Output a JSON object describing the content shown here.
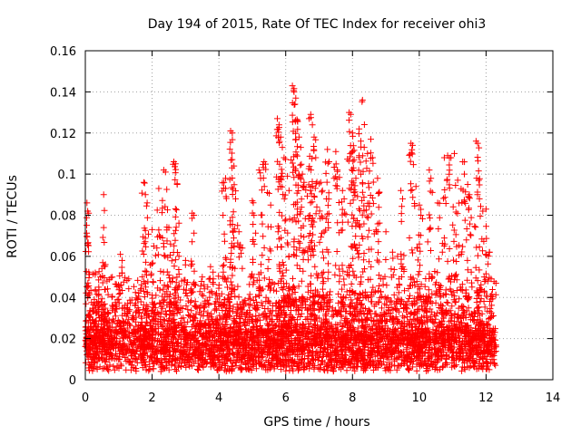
{
  "chart_data": {
    "type": "scatter",
    "title": "Day 194 of 2015, Rate Of TEC Index for receiver ohi3",
    "xlabel": "GPS time / hours",
    "ylabel": "ROTI / TECUs",
    "xlim": [
      0,
      14
    ],
    "ylim": [
      0,
      0.16
    ],
    "xticks": [
      "0",
      "2",
      "4",
      "6",
      "8",
      "10",
      "12",
      "14"
    ],
    "yticks": [
      "0",
      "0.02",
      "0.04",
      "0.06",
      "0.08",
      "0.1",
      "0.12",
      "0.14",
      "0.16"
    ],
    "grid": true,
    "marker": "plus",
    "color": "#ff0000",
    "x_data_range": [
      0.0,
      12.3
    ],
    "series": [
      {
        "name": "",
        "points": [
          [
            0.05,
            0.086
          ],
          [
            0.07,
            0.082
          ],
          [
            0.1,
            0.081
          ],
          [
            0.3,
            0.052
          ],
          [
            0.45,
            0.05
          ],
          [
            0.55,
            0.09
          ],
          [
            0.55,
            0.074
          ],
          [
            0.6,
            0.056
          ],
          [
            0.65,
            0.048
          ],
          [
            1.05,
            0.061
          ],
          [
            1.1,
            0.058
          ],
          [
            1.3,
            0.049
          ],
          [
            1.75,
            0.096
          ],
          [
            1.8,
            0.09
          ],
          [
            1.85,
            0.086
          ],
          [
            2.0,
            0.073
          ],
          [
            2.05,
            0.065
          ],
          [
            2.2,
            0.093
          ],
          [
            2.35,
            0.102
          ],
          [
            2.4,
            0.101
          ],
          [
            2.65,
            0.106
          ],
          [
            2.7,
            0.105
          ],
          [
            2.75,
            0.095
          ],
          [
            2.5,
            0.074
          ],
          [
            2.55,
            0.066
          ],
          [
            3.2,
            0.081
          ],
          [
            3.25,
            0.08
          ],
          [
            3.0,
            0.058
          ],
          [
            3.5,
            0.05
          ],
          [
            3.75,
            0.055
          ],
          [
            4.15,
            0.096
          ],
          [
            4.2,
            0.098
          ],
          [
            4.35,
            0.121
          ],
          [
            4.4,
            0.12
          ],
          [
            4.45,
            0.104
          ],
          [
            4.5,
            0.088
          ],
          [
            4.6,
            0.072
          ],
          [
            4.7,
            0.064
          ],
          [
            5.0,
            0.087
          ],
          [
            5.05,
            0.08
          ],
          [
            5.2,
            0.102
          ],
          [
            5.25,
            0.098
          ],
          [
            5.35,
            0.106
          ],
          [
            5.45,
            0.091
          ],
          [
            5.55,
            0.085
          ],
          [
            5.75,
            0.127
          ],
          [
            5.8,
            0.124
          ],
          [
            5.85,
            0.118
          ],
          [
            5.9,
            0.113
          ],
          [
            5.95,
            0.108
          ],
          [
            6.05,
            0.099
          ],
          [
            6.1,
            0.092
          ],
          [
            6.2,
            0.143
          ],
          [
            6.25,
            0.14
          ],
          [
            6.3,
            0.137
          ],
          [
            6.35,
            0.126
          ],
          [
            6.4,
            0.118
          ],
          [
            6.45,
            0.113
          ],
          [
            6.5,
            0.1
          ],
          [
            6.55,
            0.096
          ],
          [
            6.7,
            0.127
          ],
          [
            6.75,
            0.129
          ],
          [
            6.8,
            0.124
          ],
          [
            6.85,
            0.118
          ],
          [
            6.9,
            0.108
          ],
          [
            7.05,
            0.096
          ],
          [
            7.1,
            0.092
          ],
          [
            7.25,
            0.112
          ],
          [
            7.3,
            0.106
          ],
          [
            7.5,
            0.111
          ],
          [
            7.55,
            0.102
          ],
          [
            7.7,
            0.092
          ],
          [
            7.75,
            0.088
          ],
          [
            7.9,
            0.13
          ],
          [
            7.95,
            0.129
          ],
          [
            8.0,
            0.12
          ],
          [
            8.05,
            0.107
          ],
          [
            8.1,
            0.098
          ],
          [
            8.2,
            0.122
          ],
          [
            8.25,
            0.116
          ],
          [
            8.3,
            0.136
          ],
          [
            8.35,
            0.113
          ],
          [
            8.45,
            0.11
          ],
          [
            8.55,
            0.117
          ],
          [
            8.6,
            0.108
          ],
          [
            8.75,
            0.098
          ],
          [
            8.8,
            0.091
          ],
          [
            9.0,
            0.072
          ],
          [
            9.2,
            0.062
          ],
          [
            9.35,
            0.06
          ],
          [
            9.45,
            0.092
          ],
          [
            9.5,
            0.088
          ],
          [
            9.75,
            0.115
          ],
          [
            9.8,
            0.114
          ],
          [
            9.9,
            0.094
          ],
          [
            10.0,
            0.085
          ],
          [
            10.05,
            0.08
          ],
          [
            10.3,
            0.102
          ],
          [
            10.35,
            0.098
          ],
          [
            10.55,
            0.086
          ],
          [
            10.75,
            0.108
          ],
          [
            10.85,
            0.109
          ],
          [
            10.95,
            0.108
          ],
          [
            11.05,
            0.11
          ],
          [
            11.15,
            0.097
          ],
          [
            11.3,
            0.106
          ],
          [
            11.35,
            0.1
          ],
          [
            11.45,
            0.095
          ],
          [
            11.5,
            0.09
          ],
          [
            11.7,
            0.116
          ],
          [
            11.75,
            0.115
          ],
          [
            11.8,
            0.088
          ],
          [
            11.9,
            0.082
          ],
          [
            12.0,
            0.083
          ],
          [
            12.1,
            0.062
          ]
        ]
      }
    ]
  }
}
